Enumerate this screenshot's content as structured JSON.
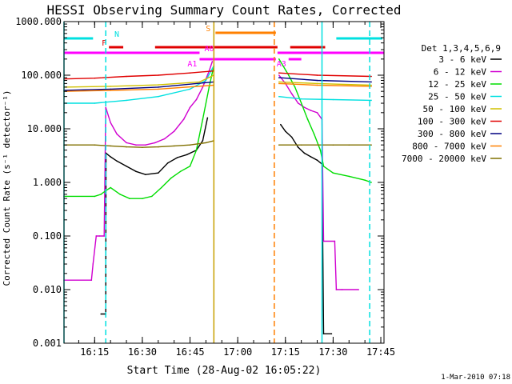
{
  "chart_data": {
    "type": "line",
    "title": "HESSI Observing Summary Count Rates, Corrected",
    "xlabel": "Start Time (28-Aug-02 16:05:22)",
    "ylabel": "Corrected Count Rate (s⁻¹ detector⁻¹)",
    "yscale": "log",
    "ylim": [
      0.001,
      1000
    ],
    "xlim": [
      "16:05:22",
      "17:46:00"
    ],
    "x_ticks": [
      "16:15",
      "16:30",
      "16:45",
      "17:00",
      "17:15",
      "17:30",
      "17:45"
    ],
    "y_ticks": [
      "0.001",
      "0.010",
      "0.100",
      "1.000",
      "10.000",
      "100.000",
      "1000.000"
    ],
    "footer": "1-Mar-2010 07:18",
    "legend": {
      "title": "Det 1,3,4,5,6,9",
      "placement": "right",
      "entries": [
        {
          "label": "3 - 6 keV",
          "color": "#000000"
        },
        {
          "label": "6 - 12 keV",
          "color": "#d000d0"
        },
        {
          "label": "12 - 25 keV",
          "color": "#00dd00"
        },
        {
          "label": "25 - 50 keV",
          "color": "#00e0e0"
        },
        {
          "label": "50 - 100 keV",
          "color": "#d0c000"
        },
        {
          "label": "100 - 300 keV",
          "color": "#e00000"
        },
        {
          "label": "300 - 800 keV",
          "color": "#000080"
        },
        {
          "label": "800 - 7000 keV",
          "color": "#ff8000"
        },
        {
          "label": "7000 - 20000 keV",
          "color": "#807000"
        }
      ]
    },
    "flags": [
      {
        "label": "N",
        "color": "#00e0e0",
        "intervals": [
          [
            "16:05:22",
            "16:14:30"
          ],
          [
            "17:31:00",
            "17:45:30"
          ]
        ]
      },
      {
        "label": "F",
        "color": "#e00000",
        "intervals": [
          [
            "16:19:30",
            "16:24:00"
          ],
          [
            "16:34:00",
            "17:12:30"
          ],
          [
            "17:16:30",
            "17:27:30"
          ]
        ]
      },
      {
        "label": "S",
        "color": "#ff8000",
        "intervals": [
          [
            "16:53:00",
            "17:12:00"
          ]
        ]
      },
      {
        "label": "A0",
        "color": "#ff00ff",
        "intervals": [
          [
            "16:05:22",
            "16:48:00"
          ],
          [
            "17:12:30",
            "17:46:00"
          ]
        ]
      },
      {
        "label": "A1",
        "color": "#ff00ff",
        "intervals": [
          [
            "16:48:00",
            "17:12:00"
          ]
        ]
      },
      {
        "label": "A3",
        "color": "#ff00ff",
        "intervals": [
          [
            "17:16:00",
            "17:20:00"
          ]
        ]
      }
    ],
    "vlines": [
      {
        "time": "16:05:22",
        "color": "#00e0e0",
        "style": "solid"
      },
      {
        "time": "16:18:30",
        "color": "#00e0e0",
        "style": "dashed"
      },
      {
        "time": "16:52:30",
        "color": "#c8a000",
        "style": "solid"
      },
      {
        "time": "17:11:30",
        "color": "#ff8000",
        "style": "dashed"
      },
      {
        "time": "17:26:30",
        "color": "#00e0e0",
        "style": "solid"
      },
      {
        "time": "17:41:30",
        "color": "#00e0e0",
        "style": "dashed"
      }
    ],
    "series": [
      {
        "name": "3 - 6 keV",
        "color": "#000000",
        "segments": [
          {
            "x": [
              "16:17:00",
              "16:18:30",
              "16:18:35",
              "16:20:00",
              "16:22:00",
              "16:25:00",
              "16:28:00",
              "16:31:00",
              "16:35:00",
              "16:38:00",
              "16:41:00",
              "16:44:00",
              "16:47:00",
              "16:49:00",
              "16:50:30"
            ],
            "y": [
              0.0035,
              0.0035,
              3.5,
              3.0,
              2.5,
              2.0,
              1.6,
              1.4,
              1.5,
              2.3,
              2.9,
              3.3,
              4.0,
              6.0,
              16
            ]
          },
          {
            "x": [
              "17:13:30",
              "17:15:00",
              "17:17:00",
              "17:19:00",
              "17:21:00",
              "17:23:00",
              "17:25:00",
              "17:26:30",
              "17:27:00",
              "17:29:30"
            ],
            "y": [
              12,
              9,
              7,
              4.5,
              3.5,
              3.0,
              2.6,
              2.2,
              0.0015,
              0.0015
            ]
          }
        ]
      },
      {
        "name": "6 - 12 keV",
        "color": "#d000d0",
        "segments": [
          {
            "x": [
              "16:05:22",
              "16:14:00",
              "16:14:30",
              "16:15:30",
              "16:16:30",
              "16:18:00",
              "16:18:30",
              "16:20:00",
              "16:22:00",
              "16:25:00",
              "16:28:00",
              "16:31:00",
              "16:34:00",
              "16:37:00",
              "16:40:00",
              "16:43:00",
              "16:45:00",
              "16:47:00",
              "16:49:00",
              "16:51:00",
              "16:52:00"
            ],
            "y": [
              0.015,
              0.015,
              0.03,
              0.1,
              0.1,
              0.1,
              25,
              13,
              8,
              5.5,
              5.0,
              5.0,
              5.5,
              6.5,
              9,
              15,
              25,
              35,
              60,
              120,
              180
            ]
          },
          {
            "x": [
              "17:13:00",
              "17:15:00",
              "17:17:00",
              "17:19:00",
              "17:21:00",
              "17:23:00",
              "17:25:00",
              "17:26:30",
              "17:27:00",
              "17:30:30",
              "17:31:00",
              "17:32:30",
              "17:33:00",
              "17:38:00"
            ],
            "y": [
              100,
              70,
              45,
              30,
              25,
              22,
              20,
              15,
              0.08,
              0.08,
              0.01,
              0.01,
              0.01,
              0.01
            ]
          }
        ]
      },
      {
        "name": "12 - 25 keV",
        "color": "#00dd00",
        "segments": [
          {
            "x": [
              "16:05:22",
              "16:15:00",
              "16:17:00",
              "16:18:30",
              "16:20:00",
              "16:23:00",
              "16:26:00",
              "16:30:00",
              "16:33:00",
              "16:36:00",
              "16:39:00",
              "16:42:00",
              "16:45:00",
              "16:47:00",
              "16:49:00",
              "16:51:00",
              "16:52:30"
            ],
            "y": [
              0.55,
              0.55,
              0.6,
              0.7,
              0.8,
              0.6,
              0.5,
              0.5,
              0.55,
              0.8,
              1.2,
              1.6,
              2.0,
              4,
              15,
              60,
              150
            ]
          },
          {
            "x": [
              "17:13:00",
              "17:16:00",
              "17:18:00",
              "17:20:00",
              "17:22:00",
              "17:24:00",
              "17:26:00",
              "17:27:00",
              "17:30:00",
              "17:35:00",
              "17:40:00",
              "17:42:00"
            ],
            "y": [
              200,
              100,
              60,
              30,
              15,
              8,
              4,
              2,
              1.5,
              1.3,
              1.1,
              1.0
            ]
          }
        ]
      },
      {
        "name": "25 - 50 keV",
        "color": "#00e0e0",
        "segments": [
          {
            "x": [
              "16:05:22",
              "16:15:00",
              "16:25:00",
              "16:35:00",
              "16:45:00",
              "16:50:00",
              "16:52:30"
            ],
            "y": [
              30,
              30,
              34,
              40,
              55,
              80,
              150
            ]
          },
          {
            "x": [
              "17:13:00",
              "17:20:00",
              "17:30:00",
              "17:42:00"
            ],
            "y": [
              40,
              36,
              35,
              34
            ]
          }
        ]
      },
      {
        "name": "50 - 100 keV",
        "color": "#d0c000",
        "segments": [
          {
            "x": [
              "16:05:22",
              "16:20:00",
              "16:35:00",
              "16:48:00",
              "16:52:30"
            ],
            "y": [
              60,
              62,
              66,
              75,
              100
            ]
          },
          {
            "x": [
              "17:13:00",
              "17:25:00",
              "17:42:00"
            ],
            "y": [
              75,
              70,
              65
            ]
          }
        ]
      },
      {
        "name": "100 - 300 keV",
        "color": "#e00000",
        "segments": [
          {
            "x": [
              "16:05:22",
              "16:15:00",
              "16:25:00",
              "16:35:00",
              "16:45:00",
              "16:52:30"
            ],
            "y": [
              85,
              88,
              95,
              100,
              110,
              120
            ]
          },
          {
            "x": [
              "17:13:00",
              "17:25:00",
              "17:42:00"
            ],
            "y": [
              110,
              100,
              95
            ]
          }
        ]
      },
      {
        "name": "300 - 800 keV",
        "color": "#000080",
        "segments": [
          {
            "x": [
              "16:05:22",
              "16:20:00",
              "16:35:00",
              "16:52:30"
            ],
            "y": [
              52,
              55,
              60,
              75
            ]
          },
          {
            "x": [
              "17:13:00",
              "17:25:00",
              "17:42:00"
            ],
            "y": [
              90,
              80,
              75
            ]
          }
        ]
      },
      {
        "name": "800 - 7000 keV",
        "color": "#ff8000",
        "segments": [
          {
            "x": [
              "16:05:22",
              "16:20:00",
              "16:35:00",
              "16:52:30"
            ],
            "y": [
              50,
              52,
              55,
              65
            ]
          },
          {
            "x": [
              "17:13:00",
              "17:25:00",
              "17:42:00"
            ],
            "y": [
              70,
              65,
              62
            ]
          }
        ]
      },
      {
        "name": "7000 - 20000 keV",
        "color": "#807000",
        "segments": [
          {
            "x": [
              "16:05:22",
              "16:15:00",
              "16:20:00",
              "16:25:00",
              "16:30:00",
              "16:35:00",
              "16:40:00",
              "16:45:00",
              "16:50:00",
              "16:52:30"
            ],
            "y": [
              5,
              5,
              4.8,
              4.6,
              4.5,
              4.6,
              4.8,
              5.0,
              5.5,
              6.0
            ]
          },
          {
            "x": [
              "17:13:00",
              "17:20:00",
              "17:30:00",
              "17:35:00",
              "17:42:00"
            ],
            "y": [
              5,
              5,
              5,
              5,
              5
            ]
          }
        ]
      }
    ]
  }
}
